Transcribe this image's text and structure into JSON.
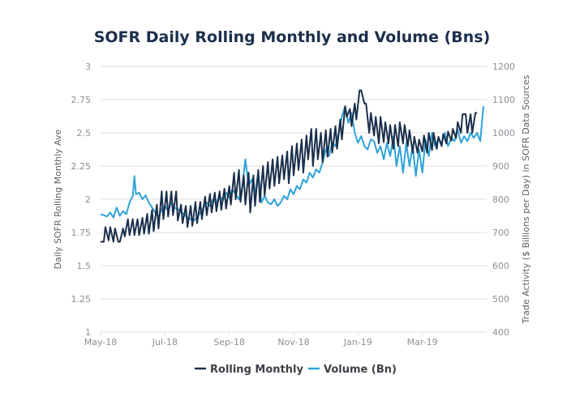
{
  "chart_data": {
    "type": "line",
    "title": "SOFR Daily Rolling Monthly and Volume (Bns)",
    "xlabel": "",
    "ylabel": "Daily SOFR Rolling Monthly Ave",
    "y2label": "Trade Activity ($ Billions per Day) in SOFR Data Sources",
    "ylim": [
      1,
      3
    ],
    "y2lim": [
      400,
      1200
    ],
    "yticks": [
      "1",
      "1.25",
      "1.5",
      "1.75",
      "2",
      "2.25",
      "2.5",
      "2.75",
      "3"
    ],
    "y2ticks": [
      "400",
      "500",
      "600",
      "700",
      "800",
      "900",
      "1000",
      "1100",
      "1200"
    ],
    "xticks": [
      "May-18",
      "Jul-18",
      "Sep-18",
      "Nov-18",
      "Jan-19",
      "Mar-19"
    ],
    "xrange_months": [
      0,
      12
    ],
    "grid": true,
    "legend_position": "bottom-center",
    "series": [
      {
        "name": "Rolling Monthly",
        "axis": "left",
        "color": "#1b2f4b",
        "x_months": [
          0,
          0.1,
          0.15,
          0.25,
          0.3,
          0.4,
          0.45,
          0.55,
          0.6,
          0.7,
          0.75,
          0.85,
          0.9,
          1.0,
          1.05,
          1.15,
          1.2,
          1.3,
          1.35,
          1.45,
          1.5,
          1.6,
          1.65,
          1.75,
          1.8,
          1.9,
          1.95,
          2.05,
          2.1,
          2.2,
          2.25,
          2.35,
          2.4,
          2.5,
          2.55,
          2.65,
          2.7,
          2.8,
          2.85,
          2.95,
          3.0,
          3.1,
          3.15,
          3.25,
          3.3,
          3.4,
          3.45,
          3.55,
          3.6,
          3.7,
          3.75,
          3.85,
          3.9,
          4.0,
          4.05,
          4.15,
          4.2,
          4.3,
          4.35,
          4.45,
          4.5,
          4.6,
          4.65,
          4.75,
          4.8,
          4.9,
          4.95,
          5.05,
          5.1,
          5.2,
          5.25,
          5.35,
          5.4,
          5.5,
          5.55,
          5.65,
          5.7,
          5.8,
          5.85,
          5.95,
          6.0,
          6.1,
          6.15,
          6.25,
          6.3,
          6.4,
          6.45,
          6.55,
          6.6,
          6.7,
          6.75,
          6.85,
          6.9,
          7.0,
          7.05,
          7.15,
          7.2,
          7.3,
          7.35,
          7.45,
          7.5,
          7.6,
          7.65,
          7.75,
          7.8,
          7.9,
          7.95,
          8.05,
          8.1,
          8.2,
          8.25,
          8.35,
          8.4,
          8.5,
          8.55,
          8.65,
          8.7,
          8.8,
          8.85,
          8.95,
          9.0,
          9.1,
          9.15,
          9.25,
          9.3,
          9.4,
          9.45,
          9.55,
          9.6,
          9.7,
          9.75,
          9.85,
          9.9,
          10.0,
          10.05,
          10.15,
          10.2,
          10.3,
          10.35,
          10.45,
          10.5,
          10.6,
          10.65,
          10.75,
          10.8,
          10.9,
          10.95,
          11.05,
          11.1,
          11.2,
          11.25,
          11.35,
          11.4,
          11.5,
          11.55,
          11.65,
          11.7,
          11.8,
          11.9
        ],
        "values": [
          1.68,
          1.68,
          1.79,
          1.69,
          1.79,
          1.68,
          1.78,
          1.68,
          1.68,
          1.78,
          1.72,
          1.85,
          1.73,
          1.85,
          1.73,
          1.85,
          1.73,
          1.86,
          1.74,
          1.89,
          1.74,
          1.92,
          1.76,
          1.96,
          1.78,
          2.06,
          1.85,
          2.06,
          1.87,
          2.06,
          1.88,
          2.06,
          1.84,
          1.96,
          1.82,
          1.95,
          1.79,
          1.95,
          1.8,
          1.98,
          1.82,
          1.98,
          1.85,
          2.02,
          1.88,
          2.04,
          1.9,
          2.05,
          1.91,
          2.06,
          1.92,
          2.08,
          1.93,
          2.1,
          1.96,
          2.2,
          2.0,
          2.22,
          1.98,
          2.18,
          1.96,
          2.2,
          1.9,
          2.18,
          1.95,
          2.22,
          1.98,
          2.25,
          2.03,
          2.28,
          2.08,
          2.3,
          2.1,
          2.32,
          2.12,
          2.33,
          2.15,
          2.36,
          2.12,
          2.4,
          2.18,
          2.42,
          2.22,
          2.45,
          2.2,
          2.48,
          2.3,
          2.53,
          2.25,
          2.53,
          2.3,
          2.5,
          2.28,
          2.52,
          2.32,
          2.53,
          2.35,
          2.55,
          2.38,
          2.6,
          2.45,
          2.7,
          2.62,
          2.68,
          2.55,
          2.72,
          2.6,
          2.82,
          2.82,
          2.72,
          2.72,
          2.5,
          2.65,
          2.48,
          2.62,
          2.42,
          2.62,
          2.43,
          2.58,
          2.42,
          2.56,
          2.38,
          2.56,
          2.4,
          2.58,
          2.42,
          2.56,
          2.4,
          2.52,
          2.35,
          2.47,
          2.35,
          2.45,
          2.36,
          2.48,
          2.35,
          2.5,
          2.37,
          2.5,
          2.38,
          2.47,
          2.4,
          2.49,
          2.42,
          2.51,
          2.44,
          2.53,
          2.46,
          2.58,
          2.5,
          2.64,
          2.64,
          2.5,
          2.64,
          2.5,
          2.65,
          2.65
        ]
      },
      {
        "name": "Volume (Bn)",
        "axis": "right",
        "color": "#2ea3d8",
        "x_months": [
          0,
          0.1,
          0.2,
          0.3,
          0.4,
          0.5,
          0.6,
          0.7,
          0.8,
          0.9,
          1.0,
          1.05,
          1.1,
          1.2,
          1.3,
          1.4,
          1.5,
          1.6,
          1.7,
          1.8,
          1.9,
          2.0,
          2.1,
          2.2,
          2.3,
          2.4,
          2.5,
          2.6,
          2.7,
          2.8,
          2.9,
          3.0,
          3.1,
          3.2,
          3.3,
          3.4,
          3.5,
          3.6,
          3.7,
          3.8,
          3.9,
          4.0,
          4.1,
          4.2,
          4.3,
          4.4,
          4.5,
          4.6,
          4.7,
          4.8,
          4.9,
          5.0,
          5.1,
          5.2,
          5.3,
          5.4,
          5.5,
          5.6,
          5.7,
          5.8,
          5.9,
          6.0,
          6.1,
          6.2,
          6.3,
          6.4,
          6.5,
          6.6,
          6.7,
          6.8,
          6.9,
          7.0,
          7.1,
          7.2,
          7.3,
          7.4,
          7.5,
          7.6,
          7.7,
          7.8,
          7.9,
          8.0,
          8.1,
          8.2,
          8.3,
          8.4,
          8.5,
          8.6,
          8.7,
          8.8,
          8.9,
          9.0,
          9.1,
          9.2,
          9.3,
          9.4,
          9.5,
          9.6,
          9.7,
          9.8,
          9.9,
          10.0,
          10.1,
          10.2,
          10.3,
          10.4,
          10.5,
          10.6,
          10.7,
          10.8,
          10.9,
          11.0,
          11.1,
          11.2,
          11.3,
          11.4,
          11.5,
          11.6,
          11.7,
          11.8,
          11.9
        ],
        "values": [
          755,
          752,
          748,
          760,
          745,
          775,
          750,
          765,
          755,
          790,
          810,
          870,
          815,
          820,
          800,
          812,
          790,
          775,
          760,
          745,
          770,
          780,
          765,
          790,
          775,
          770,
          760,
          755,
          745,
          740,
          735,
          745,
          760,
          775,
          790,
          780,
          800,
          790,
          810,
          795,
          820,
          805,
          830,
          815,
          800,
          835,
          920,
          840,
          860,
          815,
          880,
          790,
          810,
          790,
          785,
          800,
          780,
          790,
          810,
          800,
          830,
          815,
          840,
          830,
          860,
          850,
          880,
          865,
          890,
          880,
          910,
          950,
          930,
          970,
          960,
          1000,
          1050,
          1080,
          1030,
          1060,
          1000,
          970,
          990,
          960,
          950,
          980,
          975,
          940,
          960,
          920,
          970,
          930,
          990,
          900,
          960,
          880,
          970,
          900,
          960,
          870,
          950,
          880,
          980,
          930,
          1000,
          960,
          980,
          970,
          1000,
          960,
          985,
          975,
          1010,
          970,
          990,
          975,
          1000,
          985,
          1000,
          975,
          1080
        ]
      }
    ]
  }
}
